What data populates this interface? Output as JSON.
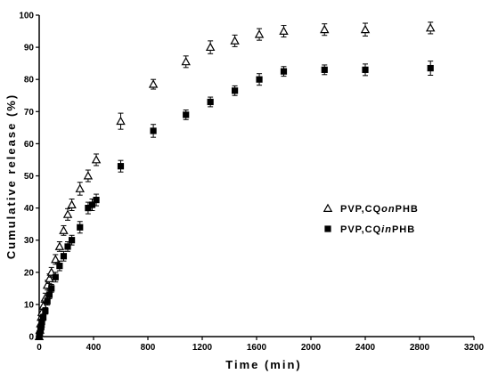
{
  "chart_data": {
    "type": "scatter",
    "title": "",
    "xlabel": "Time (min)",
    "ylabel": "Cumulative release (%)",
    "xlim": [
      0,
      3200
    ],
    "ylim": [
      0,
      100
    ],
    "xticks": [
      0,
      400,
      800,
      1200,
      1600,
      2000,
      2400,
      2800,
      3200
    ],
    "yticks": [
      0,
      10,
      20,
      30,
      40,
      50,
      60,
      70,
      80,
      90,
      100
    ],
    "xtick_labels": [
      "0",
      "400",
      "800",
      "1200",
      "1600",
      "2000",
      "2400",
      "2800",
      "3200"
    ],
    "ytick_labels": [
      "0",
      "10",
      "20",
      "30",
      "40",
      "50",
      "60",
      "70",
      "80",
      "90",
      "100"
    ],
    "grid": false,
    "legend_position": "right-middle",
    "series": [
      {
        "name": "PVP,CQonPHB",
        "name_parts": [
          {
            "text": "PVP,CQ",
            "italic": false
          },
          {
            "text": "on",
            "italic": true
          },
          {
            "text": "PHB",
            "italic": false
          }
        ],
        "marker": "triangle-open",
        "x": [
          0,
          5,
          10,
          15,
          20,
          30,
          45,
          60,
          75,
          90,
          120,
          150,
          180,
          210,
          240,
          300,
          360,
          420,
          600,
          840,
          1080,
          1260,
          1440,
          1620,
          1800,
          2100,
          2400,
          2880
        ],
        "y": [
          0,
          2,
          4,
          6,
          7.5,
          9.5,
          12,
          16,
          18,
          20,
          24,
          28,
          33,
          38,
          41,
          46,
          50,
          55,
          67,
          78.5,
          85.5,
          90,
          92,
          94,
          95,
          95.5,
          95.5,
          96
        ],
        "err": [
          0.5,
          0.8,
          1,
          1,
          1,
          1.2,
          1.5,
          1.5,
          1.5,
          1.5,
          1.5,
          1.5,
          1.5,
          1.8,
          1.8,
          2,
          1.8,
          1.8,
          2.5,
          1.5,
          1.8,
          2,
          1.8,
          1.8,
          1.8,
          1.8,
          2,
          1.8
        ]
      },
      {
        "name": "PVP,CQinPHB",
        "name_parts": [
          {
            "text": "PVP,CQ",
            "italic": false
          },
          {
            "text": "in",
            "italic": true
          },
          {
            "text": "PHB",
            "italic": false
          }
        ],
        "marker": "square-filled",
        "x": [
          0,
          5,
          10,
          15,
          20,
          30,
          45,
          60,
          75,
          90,
          120,
          150,
          180,
          210,
          240,
          300,
          360,
          390,
          420,
          600,
          840,
          1080,
          1260,
          1440,
          1620,
          1800,
          2100,
          2400,
          2880
        ],
        "y": [
          0,
          1,
          2,
          3,
          4.5,
          6,
          8,
          11,
          13,
          15,
          18.5,
          22,
          25,
          28,
          30,
          34,
          40,
          41,
          42.5,
          53,
          64,
          69,
          73,
          76.5,
          80,
          82.5,
          83,
          83,
          83.5
        ],
        "err": [
          0.3,
          0.5,
          0.8,
          1,
          1,
          1,
          1,
          1.2,
          1.2,
          1.2,
          1.5,
          1.5,
          1.5,
          1.5,
          1.5,
          1.8,
          1.8,
          1.8,
          1.8,
          1.8,
          2,
          1.5,
          1.5,
          1.5,
          1.8,
          1.5,
          1.5,
          1.8,
          2.2
        ]
      }
    ]
  }
}
